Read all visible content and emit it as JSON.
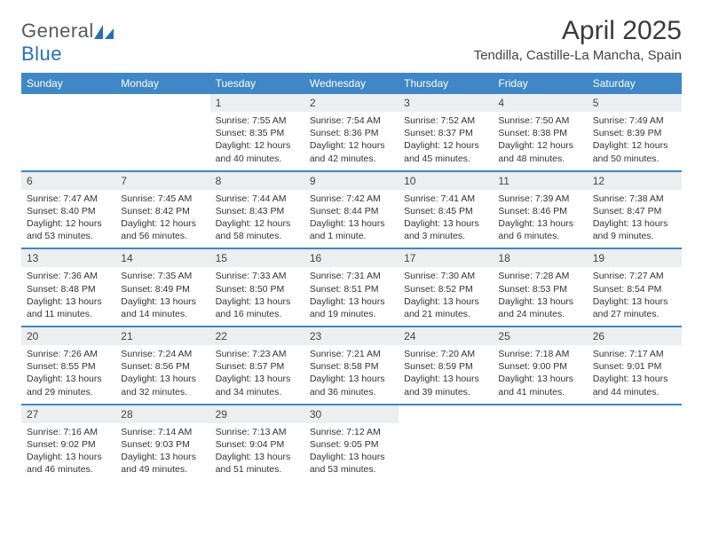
{
  "brand": {
    "part1": "General",
    "part2": "Blue"
  },
  "title": "April 2025",
  "location": "Tendilla, Castille-La Mancha, Spain",
  "colors": {
    "header_bg": "#3f87c6",
    "header_text": "#ffffff",
    "daynum_bg": "#eceeef",
    "separator": "#3f87c6",
    "body_text": "#333333",
    "page_bg": "#ffffff",
    "logo_gray": "#5a5a5a",
    "logo_blue": "#2a6fb5"
  },
  "weekdays": [
    "Sunday",
    "Monday",
    "Tuesday",
    "Wednesday",
    "Thursday",
    "Friday",
    "Saturday"
  ],
  "weeks": [
    [
      {
        "n": "",
        "sr": "",
        "ss": "",
        "dl": ""
      },
      {
        "n": "",
        "sr": "",
        "ss": "",
        "dl": ""
      },
      {
        "n": "1",
        "sr": "Sunrise: 7:55 AM",
        "ss": "Sunset: 8:35 PM",
        "dl": "Daylight: 12 hours and 40 minutes."
      },
      {
        "n": "2",
        "sr": "Sunrise: 7:54 AM",
        "ss": "Sunset: 8:36 PM",
        "dl": "Daylight: 12 hours and 42 minutes."
      },
      {
        "n": "3",
        "sr": "Sunrise: 7:52 AM",
        "ss": "Sunset: 8:37 PM",
        "dl": "Daylight: 12 hours and 45 minutes."
      },
      {
        "n": "4",
        "sr": "Sunrise: 7:50 AM",
        "ss": "Sunset: 8:38 PM",
        "dl": "Daylight: 12 hours and 48 minutes."
      },
      {
        "n": "5",
        "sr": "Sunrise: 7:49 AM",
        "ss": "Sunset: 8:39 PM",
        "dl": "Daylight: 12 hours and 50 minutes."
      }
    ],
    [
      {
        "n": "6",
        "sr": "Sunrise: 7:47 AM",
        "ss": "Sunset: 8:40 PM",
        "dl": "Daylight: 12 hours and 53 minutes."
      },
      {
        "n": "7",
        "sr": "Sunrise: 7:45 AM",
        "ss": "Sunset: 8:42 PM",
        "dl": "Daylight: 12 hours and 56 minutes."
      },
      {
        "n": "8",
        "sr": "Sunrise: 7:44 AM",
        "ss": "Sunset: 8:43 PM",
        "dl": "Daylight: 12 hours and 58 minutes."
      },
      {
        "n": "9",
        "sr": "Sunrise: 7:42 AM",
        "ss": "Sunset: 8:44 PM",
        "dl": "Daylight: 13 hours and 1 minute."
      },
      {
        "n": "10",
        "sr": "Sunrise: 7:41 AM",
        "ss": "Sunset: 8:45 PM",
        "dl": "Daylight: 13 hours and 3 minutes."
      },
      {
        "n": "11",
        "sr": "Sunrise: 7:39 AM",
        "ss": "Sunset: 8:46 PM",
        "dl": "Daylight: 13 hours and 6 minutes."
      },
      {
        "n": "12",
        "sr": "Sunrise: 7:38 AM",
        "ss": "Sunset: 8:47 PM",
        "dl": "Daylight: 13 hours and 9 minutes."
      }
    ],
    [
      {
        "n": "13",
        "sr": "Sunrise: 7:36 AM",
        "ss": "Sunset: 8:48 PM",
        "dl": "Daylight: 13 hours and 11 minutes."
      },
      {
        "n": "14",
        "sr": "Sunrise: 7:35 AM",
        "ss": "Sunset: 8:49 PM",
        "dl": "Daylight: 13 hours and 14 minutes."
      },
      {
        "n": "15",
        "sr": "Sunrise: 7:33 AM",
        "ss": "Sunset: 8:50 PM",
        "dl": "Daylight: 13 hours and 16 minutes."
      },
      {
        "n": "16",
        "sr": "Sunrise: 7:31 AM",
        "ss": "Sunset: 8:51 PM",
        "dl": "Daylight: 13 hours and 19 minutes."
      },
      {
        "n": "17",
        "sr": "Sunrise: 7:30 AM",
        "ss": "Sunset: 8:52 PM",
        "dl": "Daylight: 13 hours and 21 minutes."
      },
      {
        "n": "18",
        "sr": "Sunrise: 7:28 AM",
        "ss": "Sunset: 8:53 PM",
        "dl": "Daylight: 13 hours and 24 minutes."
      },
      {
        "n": "19",
        "sr": "Sunrise: 7:27 AM",
        "ss": "Sunset: 8:54 PM",
        "dl": "Daylight: 13 hours and 27 minutes."
      }
    ],
    [
      {
        "n": "20",
        "sr": "Sunrise: 7:26 AM",
        "ss": "Sunset: 8:55 PM",
        "dl": "Daylight: 13 hours and 29 minutes."
      },
      {
        "n": "21",
        "sr": "Sunrise: 7:24 AM",
        "ss": "Sunset: 8:56 PM",
        "dl": "Daylight: 13 hours and 32 minutes."
      },
      {
        "n": "22",
        "sr": "Sunrise: 7:23 AM",
        "ss": "Sunset: 8:57 PM",
        "dl": "Daylight: 13 hours and 34 minutes."
      },
      {
        "n": "23",
        "sr": "Sunrise: 7:21 AM",
        "ss": "Sunset: 8:58 PM",
        "dl": "Daylight: 13 hours and 36 minutes."
      },
      {
        "n": "24",
        "sr": "Sunrise: 7:20 AM",
        "ss": "Sunset: 8:59 PM",
        "dl": "Daylight: 13 hours and 39 minutes."
      },
      {
        "n": "25",
        "sr": "Sunrise: 7:18 AM",
        "ss": "Sunset: 9:00 PM",
        "dl": "Daylight: 13 hours and 41 minutes."
      },
      {
        "n": "26",
        "sr": "Sunrise: 7:17 AM",
        "ss": "Sunset: 9:01 PM",
        "dl": "Daylight: 13 hours and 44 minutes."
      }
    ],
    [
      {
        "n": "27",
        "sr": "Sunrise: 7:16 AM",
        "ss": "Sunset: 9:02 PM",
        "dl": "Daylight: 13 hours and 46 minutes."
      },
      {
        "n": "28",
        "sr": "Sunrise: 7:14 AM",
        "ss": "Sunset: 9:03 PM",
        "dl": "Daylight: 13 hours and 49 minutes."
      },
      {
        "n": "29",
        "sr": "Sunrise: 7:13 AM",
        "ss": "Sunset: 9:04 PM",
        "dl": "Daylight: 13 hours and 51 minutes."
      },
      {
        "n": "30",
        "sr": "Sunrise: 7:12 AM",
        "ss": "Sunset: 9:05 PM",
        "dl": "Daylight: 13 hours and 53 minutes."
      },
      {
        "n": "",
        "sr": "",
        "ss": "",
        "dl": ""
      },
      {
        "n": "",
        "sr": "",
        "ss": "",
        "dl": ""
      },
      {
        "n": "",
        "sr": "",
        "ss": "",
        "dl": ""
      }
    ]
  ]
}
